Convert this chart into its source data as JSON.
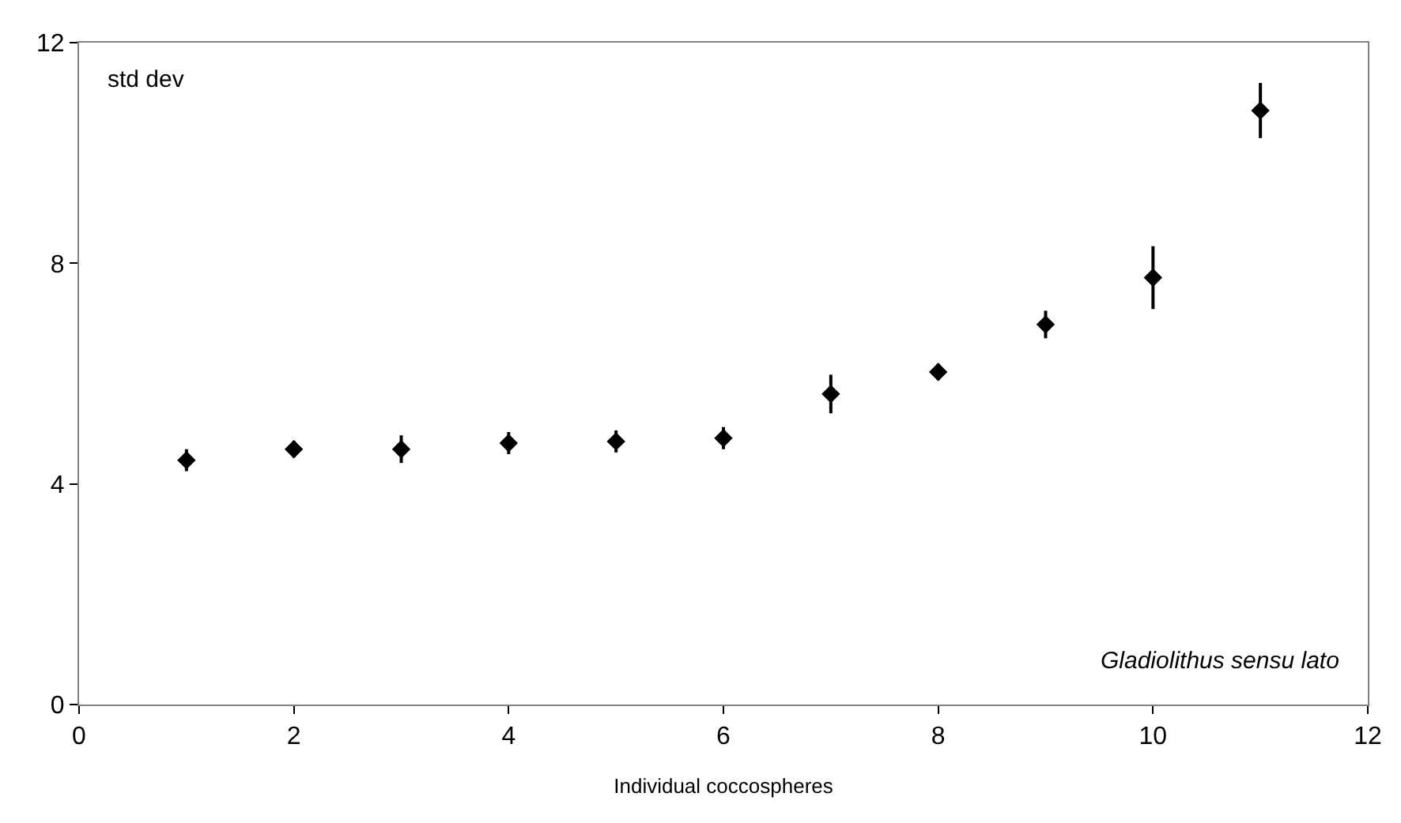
{
  "chart_data": {
    "type": "scatter",
    "xlabel": "Individual coccospheres",
    "annotations": [
      "std dev",
      "Gladiolithus sensu lato"
    ],
    "x": [
      1,
      2,
      3,
      4,
      5,
      6,
      7,
      8,
      9,
      10,
      11
    ],
    "series": [
      {
        "color": "#000000",
        "values": [
          4.43,
          4.63,
          4.63,
          4.74,
          4.77,
          4.83,
          5.63,
          6.03,
          6.89,
          7.74,
          10.77
        ],
        "errors": [
          0.2,
          0.15,
          0.25,
          0.2,
          0.2,
          0.2,
          0.35,
          0.15,
          0.25,
          0.57,
          0.5
        ]
      }
    ],
    "xlim": [
      0,
      12
    ],
    "xticks": [
      0,
      2,
      4,
      6,
      8,
      10,
      12
    ],
    "ylim": [
      0,
      12
    ],
    "yticks": [
      0,
      4,
      8,
      12
    ],
    "marker": "diamond"
  }
}
